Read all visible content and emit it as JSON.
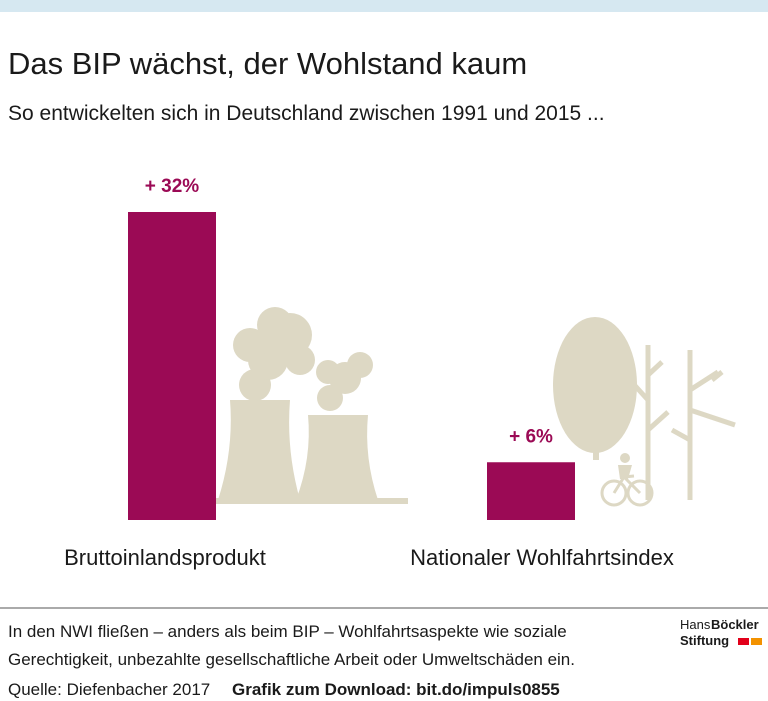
{
  "chart_data": {
    "type": "bar",
    "title": "Das BIP wächst, der Wohlstand kaum",
    "subtitle": "So entwickelten sich in Deutschland zwischen 1991 und 2015 ...",
    "categories": [
      "Bruttoinlandsprodukt",
      "Nationaler Wohlfahrtsindex"
    ],
    "values": [
      32,
      6
    ],
    "value_labels": [
      "+ 32%",
      "+ 6%"
    ],
    "color": "#9b0a55",
    "footnote": [
      "In den NWI fließen – anders als beim BIP – Wohlfahrtsaspekte wie soziale",
      "Gerechtigkeit, unbezahlte gesellschaftliche Arbeit oder Umweltschäden ein."
    ],
    "source": "Quelle: Diefenbacher 2017",
    "download": "Grafik zum Download: bit.do/impuls0855",
    "logo": [
      "Hans",
      "Böckler",
      "Stiftung"
    ]
  }
}
